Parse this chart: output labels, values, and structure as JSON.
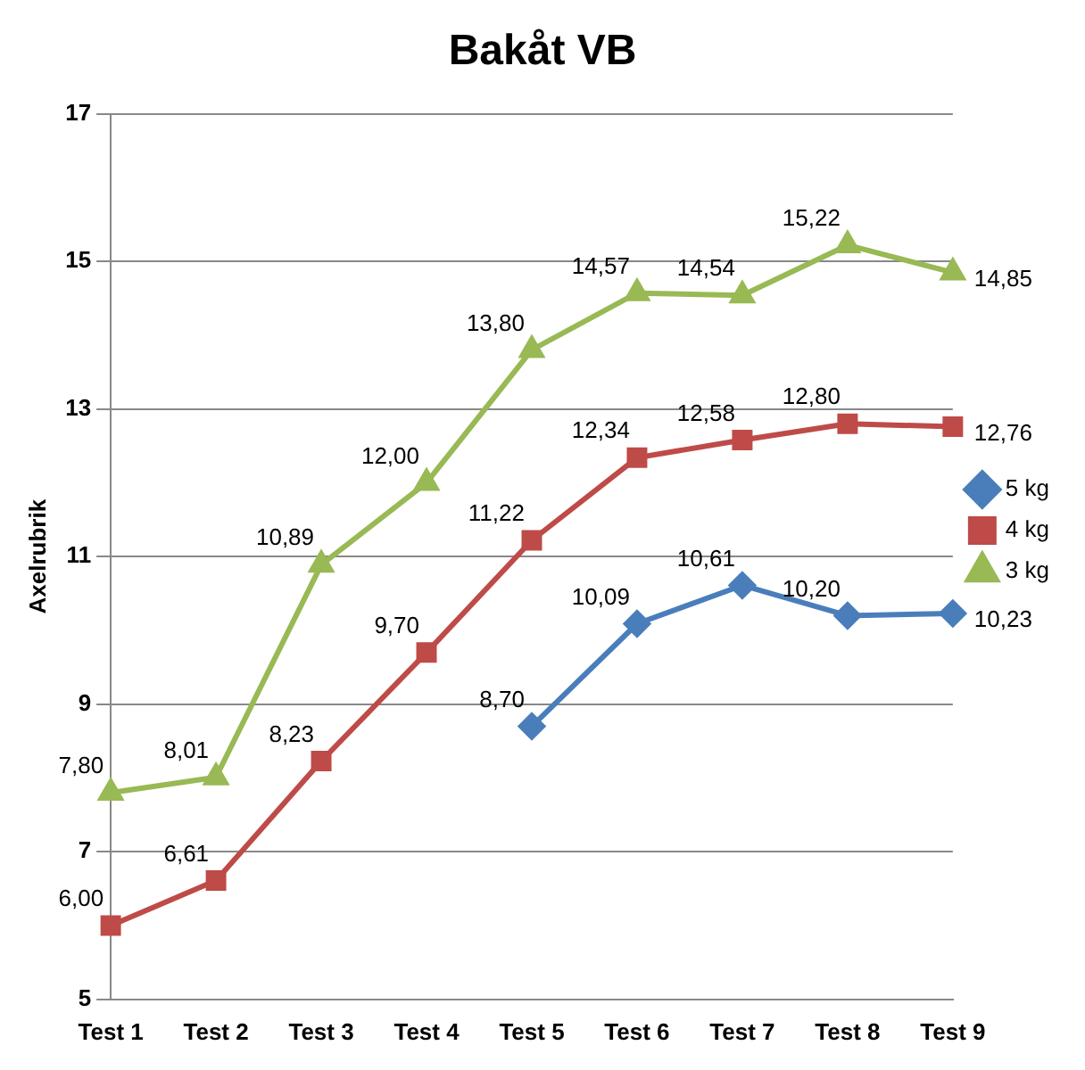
{
  "chart_data": {
    "type": "line",
    "title": "Bakåt VB",
    "ylabel": "Axelrubrik",
    "categories": [
      "Test 1",
      "Test 2",
      "Test 3",
      "Test 4",
      "Test 5",
      "Test 6",
      "Test 7",
      "Test 8",
      "Test 9"
    ],
    "series": [
      {
        "name": "5 kg",
        "color": "#4a7ebb",
        "marker": "diamond",
        "values": [
          null,
          null,
          null,
          null,
          8.7,
          10.09,
          10.61,
          10.2,
          10.23
        ],
        "value_labels": [
          null,
          null,
          null,
          null,
          "8,70",
          "10,09",
          "10,61",
          "10,20",
          "10,23"
        ]
      },
      {
        "name": "4 kg",
        "color": "#be4b48",
        "marker": "square",
        "values": [
          6.0,
          6.61,
          8.23,
          9.7,
          11.22,
          12.34,
          12.58,
          12.8,
          12.76
        ],
        "value_labels": [
          "6,00",
          "6,61",
          "8,23",
          "9,70",
          "11,22",
          "12,34",
          "12,58",
          "12,80",
          "12,76"
        ]
      },
      {
        "name": "3 kg",
        "color": "#98b954",
        "marker": "triangle",
        "values": [
          7.8,
          8.01,
          10.89,
          12.0,
          13.8,
          14.57,
          14.54,
          15.22,
          14.85
        ],
        "value_labels": [
          "7,80",
          "8,01",
          "10,89",
          "12,00",
          "13,80",
          "14,57",
          "14,54",
          "15,22",
          "14,85"
        ]
      }
    ],
    "ylim": [
      5,
      17
    ],
    "yticks": [
      5,
      7,
      9,
      11,
      13,
      15,
      17
    ],
    "grid": "y",
    "legend": "right",
    "line_style": "solid"
  }
}
